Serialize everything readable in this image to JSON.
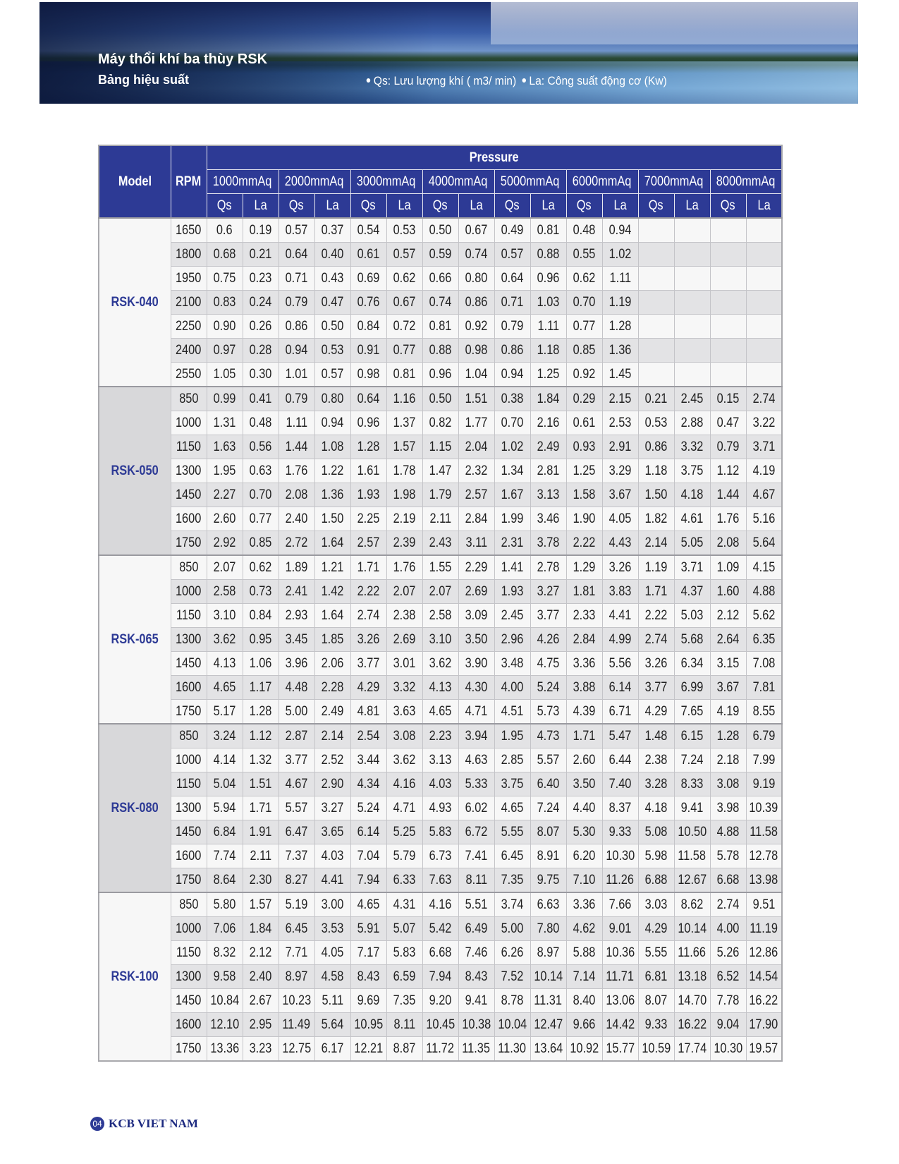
{
  "header": {
    "title": "Máy thổi khí ba thùy RSK",
    "subtitle": "Bảng hiệu suất",
    "legend": [
      "Qs: Lưu lượng khí ( m3/ min)",
      "La: Công suất động cơ  (Kw)"
    ]
  },
  "table": {
    "headers": {
      "model": "Model",
      "rpm": "RPM",
      "group": "Pressure",
      "pressures": [
        "1000mmAq",
        "2000mmAq",
        "3000mmAq",
        "4000mmAq",
        "5000mmAq",
        "6000mmAq",
        "7000mmAq",
        "8000mmAq"
      ],
      "subcolumns": [
        "Qs",
        "La"
      ]
    },
    "groups": [
      {
        "model": "RSK-040",
        "rows": [
          {
            "rpm": 1650,
            "values": [
              "0.6",
              "0.19",
              "0.57",
              "0.37",
              "0.54",
              "0.53",
              "0.50",
              "0.67",
              "0.49",
              "0.81",
              "0.48",
              "0.94"
            ]
          },
          {
            "rpm": 1800,
            "values": [
              "0.68",
              "0.21",
              "0.64",
              "0.40",
              "0.61",
              "0.57",
              "0.59",
              "0.74",
              "0.57",
              "0.88",
              "0.55",
              "1.02"
            ]
          },
          {
            "rpm": 1950,
            "values": [
              "0.75",
              "0.23",
              "0.71",
              "0.43",
              "0.69",
              "0.62",
              "0.66",
              "0.80",
              "0.64",
              "0.96",
              "0.62",
              "1.11"
            ]
          },
          {
            "rpm": 2100,
            "values": [
              "0.83",
              "0.24",
              "0.79",
              "0.47",
              "0.76",
              "0.67",
              "0.74",
              "0.86",
              "0.71",
              "1.03",
              "0.70",
              "1.19"
            ]
          },
          {
            "rpm": 2250,
            "values": [
              "0.90",
              "0.26",
              "0.86",
              "0.50",
              "0.84",
              "0.72",
              "0.81",
              "0.92",
              "0.79",
              "1.11",
              "0.77",
              "1.28"
            ]
          },
          {
            "rpm": 2400,
            "values": [
              "0.97",
              "0.28",
              "0.94",
              "0.53",
              "0.91",
              "0.77",
              "0.88",
              "0.98",
              "0.86",
              "1.18",
              "0.85",
              "1.36"
            ]
          },
          {
            "rpm": 2550,
            "values": [
              "1.05",
              "0.30",
              "1.01",
              "0.57",
              "0.98",
              "0.81",
              "0.96",
              "1.04",
              "0.94",
              "1.25",
              "0.92",
              "1.45"
            ]
          }
        ]
      },
      {
        "model": "RSK-050",
        "rows": [
          {
            "rpm": 850,
            "values": [
              "0.99",
              "0.41",
              "0.79",
              "0.80",
              "0.64",
              "1.16",
              "0.50",
              "1.51",
              "0.38",
              "1.84",
              "0.29",
              "2.15",
              "0.21",
              "2.45",
              "0.15",
              "2.74"
            ]
          },
          {
            "rpm": 1000,
            "values": [
              "1.31",
              "0.48",
              "1.11",
              "0.94",
              "0.96",
              "1.37",
              "0.82",
              "1.77",
              "0.70",
              "2.16",
              "0.61",
              "2.53",
              "0.53",
              "2.88",
              "0.47",
              "3.22"
            ]
          },
          {
            "rpm": 1150,
            "values": [
              "1.63",
              "0.56",
              "1.44",
              "1.08",
              "1.28",
              "1.57",
              "1.15",
              "2.04",
              "1.02",
              "2.49",
              "0.93",
              "2.91",
              "0.86",
              "3.32",
              "0.79",
              "3.71"
            ]
          },
          {
            "rpm": 1300,
            "values": [
              "1.95",
              "0.63",
              "1.76",
              "1.22",
              "1.61",
              "1.78",
              "1.47",
              "2.32",
              "1.34",
              "2.81",
              "1.25",
              "3.29",
              "1.18",
              "3.75",
              "1.12",
              "4.19"
            ]
          },
          {
            "rpm": 1450,
            "values": [
              "2.27",
              "0.70",
              "2.08",
              "1.36",
              "1.93",
              "1.98",
              "1.79",
              "2.57",
              "1.67",
              "3.13",
              "1.58",
              "3.67",
              "1.50",
              "4.18",
              "1.44",
              "4.67"
            ]
          },
          {
            "rpm": 1600,
            "values": [
              "2.60",
              "0.77",
              "2.40",
              "1.50",
              "2.25",
              "2.19",
              "2.11",
              "2.84",
              "1.99",
              "3.46",
              "1.90",
              "4.05",
              "1.82",
              "4.61",
              "1.76",
              "5.16"
            ]
          },
          {
            "rpm": 1750,
            "values": [
              "2.92",
              "0.85",
              "2.72",
              "1.64",
              "2.57",
              "2.39",
              "2.43",
              "3.11",
              "2.31",
              "3.78",
              "2.22",
              "4.43",
              "2.14",
              "5.05",
              "2.08",
              "5.64"
            ]
          }
        ]
      },
      {
        "model": "RSK-065",
        "rows": [
          {
            "rpm": 850,
            "values": [
              "2.07",
              "0.62",
              "1.89",
              "1.21",
              "1.71",
              "1.76",
              "1.55",
              "2.29",
              "1.41",
              "2.78",
              "1.29",
              "3.26",
              "1.19",
              "3.71",
              "1.09",
              "4.15"
            ]
          },
          {
            "rpm": 1000,
            "values": [
              "2.58",
              "0.73",
              "2.41",
              "1.42",
              "2.22",
              "2.07",
              "2.07",
              "2.69",
              "1.93",
              "3.27",
              "1.81",
              "3.83",
              "1.71",
              "4.37",
              "1.60",
              "4.88"
            ]
          },
          {
            "rpm": 1150,
            "values": [
              "3.10",
              "0.84",
              "2.93",
              "1.64",
              "2.74",
              "2.38",
              "2.58",
              "3.09",
              "2.45",
              "3.77",
              "2.33",
              "4.41",
              "2.22",
              "5.03",
              "2.12",
              "5.62"
            ]
          },
          {
            "rpm": 1300,
            "values": [
              "3.62",
              "0.95",
              "3.45",
              "1.85",
              "3.26",
              "2.69",
              "3.10",
              "3.50",
              "2.96",
              "4.26",
              "2.84",
              "4.99",
              "2.74",
              "5.68",
              "2.64",
              "6.35"
            ]
          },
          {
            "rpm": 1450,
            "values": [
              "4.13",
              "1.06",
              "3.96",
              "2.06",
              "3.77",
              "3.01",
              "3.62",
              "3.90",
              "3.48",
              "4.75",
              "3.36",
              "5.56",
              "3.26",
              "6.34",
              "3.15",
              "7.08"
            ]
          },
          {
            "rpm": 1600,
            "values": [
              "4.65",
              "1.17",
              "4.48",
              "2.28",
              "4.29",
              "3.32",
              "4.13",
              "4.30",
              "4.00",
              "5.24",
              "3.88",
              "6.14",
              "3.77",
              "6.99",
              "3.67",
              "7.81"
            ]
          },
          {
            "rpm": 1750,
            "values": [
              "5.17",
              "1.28",
              "5.00",
              "2.49",
              "4.81",
              "3.63",
              "4.65",
              "4.71",
              "4.51",
              "5.73",
              "4.39",
              "6.71",
              "4.29",
              "7.65",
              "4.19",
              "8.55"
            ]
          }
        ]
      },
      {
        "model": "RSK-080",
        "rows": [
          {
            "rpm": 850,
            "values": [
              "3.24",
              "1.12",
              "2.87",
              "2.14",
              "2.54",
              "3.08",
              "2.23",
              "3.94",
              "1.95",
              "4.73",
              "1.71",
              "5.47",
              "1.48",
              "6.15",
              "1.28",
              "6.79"
            ]
          },
          {
            "rpm": 1000,
            "values": [
              "4.14",
              "1.32",
              "3.77",
              "2.52",
              "3.44",
              "3.62",
              "3.13",
              "4.63",
              "2.85",
              "5.57",
              "2.60",
              "6.44",
              "2.38",
              "7.24",
              "2.18",
              "7.99"
            ]
          },
          {
            "rpm": 1150,
            "values": [
              "5.04",
              "1.51",
              "4.67",
              "2.90",
              "4.34",
              "4.16",
              "4.03",
              "5.33",
              "3.75",
              "6.40",
              "3.50",
              "7.40",
              "3.28",
              "8.33",
              "3.08",
              "9.19"
            ]
          },
          {
            "rpm": 1300,
            "values": [
              "5.94",
              "1.71",
              "5.57",
              "3.27",
              "5.24",
              "4.71",
              "4.93",
              "6.02",
              "4.65",
              "7.24",
              "4.40",
              "8.37",
              "4.18",
              "9.41",
              "3.98",
              "10.39"
            ]
          },
          {
            "rpm": 1450,
            "values": [
              "6.84",
              "1.91",
              "6.47",
              "3.65",
              "6.14",
              "5.25",
              "5.83",
              "6.72",
              "5.55",
              "8.07",
              "5.30",
              "9.33",
              "5.08",
              "10.50",
              "4.88",
              "11.58"
            ]
          },
          {
            "rpm": 1600,
            "values": [
              "7.74",
              "2.11",
              "7.37",
              "4.03",
              "7.04",
              "5.79",
              "6.73",
              "7.41",
              "6.45",
              "8.91",
              "6.20",
              "10.30",
              "5.98",
              "11.58",
              "5.78",
              "12.78"
            ]
          },
          {
            "rpm": 1750,
            "values": [
              "8.64",
              "2.30",
              "8.27",
              "4.41",
              "7.94",
              "6.33",
              "7.63",
              "8.11",
              "7.35",
              "9.75",
              "7.10",
              "11.26",
              "6.88",
              "12.67",
              "6.68",
              "13.98"
            ]
          }
        ]
      },
      {
        "model": "RSK-100",
        "rows": [
          {
            "rpm": 850,
            "values": [
              "5.80",
              "1.57",
              "5.19",
              "3.00",
              "4.65",
              "4.31",
              "4.16",
              "5.51",
              "3.74",
              "6.63",
              "3.36",
              "7.66",
              "3.03",
              "8.62",
              "2.74",
              "9.51"
            ]
          },
          {
            "rpm": 1000,
            "values": [
              "7.06",
              "1.84",
              "6.45",
              "3.53",
              "5.91",
              "5.07",
              "5.42",
              "6.49",
              "5.00",
              "7.80",
              "4.62",
              "9.01",
              "4.29",
              "10.14",
              "4.00",
              "11.19"
            ]
          },
          {
            "rpm": 1150,
            "values": [
              "8.32",
              "2.12",
              "7.71",
              "4.05",
              "7.17",
              "5.83",
              "6.68",
              "7.46",
              "6.26",
              "8.97",
              "5.88",
              "10.36",
              "5.55",
              "11.66",
              "5.26",
              "12.86"
            ]
          },
          {
            "rpm": 1300,
            "values": [
              "9.58",
              "2.40",
              "8.97",
              "4.58",
              "8.43",
              "6.59",
              "7.94",
              "8.43",
              "7.52",
              "10.14",
              "7.14",
              "11.71",
              "6.81",
              "13.18",
              "6.52",
              "14.54"
            ]
          },
          {
            "rpm": 1450,
            "values": [
              "10.84",
              "2.67",
              "10.23",
              "5.11",
              "9.69",
              "7.35",
              "9.20",
              "9.41",
              "8.78",
              "11.31",
              "8.40",
              "13.06",
              "8.07",
              "14.70",
              "7.78",
              "16.22"
            ]
          },
          {
            "rpm": 1600,
            "values": [
              "12.10",
              "2.95",
              "11.49",
              "5.64",
              "10.95",
              "8.11",
              "10.45",
              "10.38",
              "10.04",
              "12.47",
              "9.66",
              "14.42",
              "9.33",
              "16.22",
              "9.04",
              "17.90"
            ]
          },
          {
            "rpm": 1750,
            "values": [
              "13.36",
              "3.23",
              "12.75",
              "6.17",
              "12.21",
              "8.87",
              "11.72",
              "11.35",
              "11.30",
              "13.64",
              "10.92",
              "15.77",
              "10.59",
              "17.74",
              "10.30",
              "19.57"
            ]
          }
        ]
      }
    ]
  },
  "footer": {
    "page": "04",
    "brand": "KCB VIET NAM"
  }
}
